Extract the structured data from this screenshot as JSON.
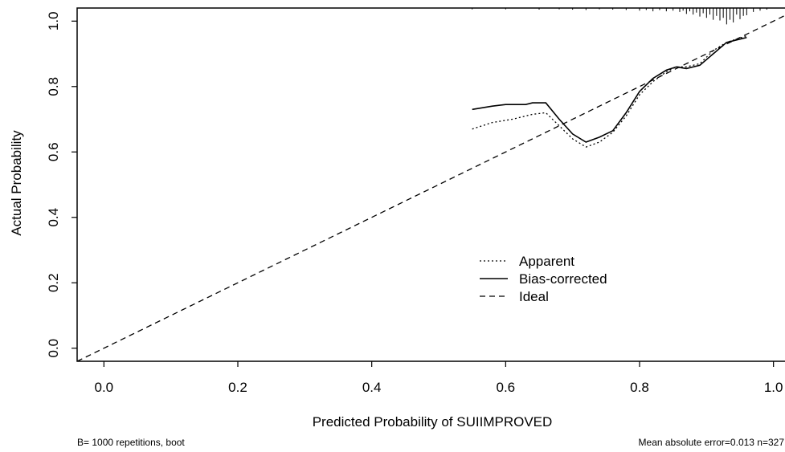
{
  "chart_data": {
    "type": "line",
    "xlabel": "Predicted Probability of SUIIMPROVED",
    "ylabel": "Actual Probability",
    "xlim": [
      -0.04,
      1.04
    ],
    "ylim": [
      -0.04,
      1.04
    ],
    "xticks": [
      0.0,
      0.2,
      0.4,
      0.6,
      0.8,
      1.0
    ],
    "xtick_labels": [
      "0.0",
      "0.2",
      "0.4",
      "0.6",
      "0.8",
      "1.0"
    ],
    "yticks": [
      0.0,
      0.2,
      0.4,
      0.6,
      0.8,
      1.0
    ],
    "ytick_labels": [
      "0.0",
      "0.2",
      "0.4",
      "0.6",
      "0.8",
      "1.0"
    ],
    "grid": false,
    "legend_placement": "bottom-right",
    "series": [
      {
        "name": "Apparent",
        "style": "dotted",
        "x": [
          0.55,
          0.58,
          0.61,
          0.64,
          0.66,
          0.68,
          0.7,
          0.72,
          0.74,
          0.76,
          0.78,
          0.8,
          0.82,
          0.84,
          0.855,
          0.87,
          0.89,
          0.91,
          0.93,
          0.96
        ],
        "y": [
          0.67,
          0.69,
          0.7,
          0.715,
          0.72,
          0.68,
          0.64,
          0.615,
          0.63,
          0.66,
          0.71,
          0.775,
          0.815,
          0.845,
          0.86,
          0.86,
          0.87,
          0.91,
          0.935,
          0.955
        ]
      },
      {
        "name": "Bias-corrected",
        "style": "solid",
        "x": [
          0.55,
          0.58,
          0.6,
          0.63,
          0.64,
          0.66,
          0.68,
          0.7,
          0.72,
          0.74,
          0.76,
          0.78,
          0.8,
          0.82,
          0.84,
          0.855,
          0.87,
          0.89,
          0.91,
          0.93,
          0.96
        ],
        "y": [
          0.73,
          0.74,
          0.745,
          0.745,
          0.75,
          0.75,
          0.7,
          0.655,
          0.63,
          0.645,
          0.665,
          0.72,
          0.785,
          0.825,
          0.85,
          0.86,
          0.855,
          0.865,
          0.9,
          0.935,
          0.95
        ]
      },
      {
        "name": "Ideal",
        "style": "dashed",
        "x": [
          -0.04,
          1.04
        ],
        "y": [
          -0.04,
          1.04
        ]
      }
    ],
    "rug": {
      "x": [
        0.55,
        0.6,
        0.65,
        0.68,
        0.7,
        0.72,
        0.74,
        0.76,
        0.78,
        0.8,
        0.81,
        0.82,
        0.83,
        0.84,
        0.85,
        0.86,
        0.865,
        0.87,
        0.875,
        0.88,
        0.885,
        0.89,
        0.895,
        0.9,
        0.905,
        0.91,
        0.915,
        0.92,
        0.925,
        0.93,
        0.935,
        0.94,
        0.945,
        0.95,
        0.955,
        0.96,
        0.97,
        0.98,
        0.99
      ],
      "heights": [
        0.004,
        0.004,
        0.005,
        0.004,
        0.005,
        0.006,
        0.004,
        0.005,
        0.006,
        0.008,
        0.006,
        0.01,
        0.006,
        0.01,
        0.008,
        0.012,
        0.008,
        0.018,
        0.01,
        0.02,
        0.014,
        0.026,
        0.016,
        0.03,
        0.02,
        0.036,
        0.024,
        0.038,
        0.03,
        0.05,
        0.036,
        0.044,
        0.02,
        0.034,
        0.024,
        0.022,
        0.012,
        0.008,
        0.005
      ]
    },
    "footnote_left": "B= 1000 repetitions, boot",
    "footnote_right": "Mean absolute error=0.013 n=327"
  },
  "colors": {
    "line": "#000000",
    "background": "#ffffff"
  }
}
